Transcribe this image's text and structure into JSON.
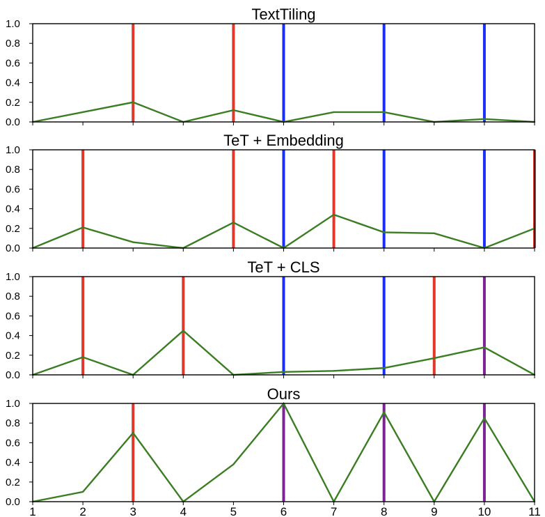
{
  "chart_data": [
    {
      "type": "line",
      "title": "TextTiling",
      "x": [
        1,
        2,
        3,
        4,
        5,
        6,
        7,
        8,
        9,
        10,
        11
      ],
      "series": [
        {
          "values": [
            0.0,
            0.1,
            0.2,
            0.0,
            0.12,
            0.0,
            0.1,
            0.1,
            0.0,
            0.03,
            0.0
          ],
          "color": "#3a7d22"
        }
      ],
      "boundaries": [
        {
          "x": 3,
          "color": "#e0382c"
        },
        {
          "x": 5,
          "color": "#e0382c"
        },
        {
          "x": 6,
          "color": "#1a2ef5"
        },
        {
          "x": 8,
          "color": "#1a2ef5"
        },
        {
          "x": 10,
          "color": "#1a2ef5"
        }
      ],
      "ylim": [
        0,
        1.0
      ],
      "xlim": [
        1,
        11
      ],
      "yticks": [
        "0.0",
        "0.2",
        "0.4",
        "0.6",
        "0.8",
        "1.0"
      ],
      "xticks": [],
      "grid": false
    },
    {
      "type": "line",
      "title": "TeT + Embedding",
      "x": [
        1,
        2,
        3,
        4,
        5,
        6,
        7,
        8,
        9,
        10,
        11
      ],
      "series": [
        {
          "values": [
            0.0,
            0.21,
            0.06,
            0.0,
            0.26,
            0.0,
            0.34,
            0.16,
            0.15,
            0.0,
            0.2
          ],
          "color": "#3a7d22"
        }
      ],
      "boundaries": [
        {
          "x": 2,
          "color": "#e0382c"
        },
        {
          "x": 5,
          "color": "#e0382c"
        },
        {
          "x": 6,
          "color": "#1a2ef5"
        },
        {
          "x": 7,
          "color": "#e0382c"
        },
        {
          "x": 8,
          "color": "#1a2ef5"
        },
        {
          "x": 10,
          "color": "#1a2ef5"
        },
        {
          "x": 11,
          "color": "#e0382c"
        }
      ],
      "ylim": [
        0,
        1.0
      ],
      "xlim": [
        1,
        11
      ],
      "yticks": [
        "0.0",
        "0.2",
        "0.4",
        "0.6",
        "0.8",
        "1.0"
      ],
      "xticks": [],
      "grid": false
    },
    {
      "type": "line",
      "title": "TeT + CLS",
      "x": [
        1,
        2,
        3,
        4,
        5,
        6,
        7,
        8,
        9,
        10,
        11
      ],
      "series": [
        {
          "values": [
            0.0,
            0.18,
            0.0,
            0.45,
            0.0,
            0.03,
            0.04,
            0.07,
            0.17,
            0.28,
            0.0
          ],
          "color": "#3a7d22"
        }
      ],
      "boundaries": [
        {
          "x": 2,
          "color": "#e0382c"
        },
        {
          "x": 4,
          "color": "#e0382c"
        },
        {
          "x": 6,
          "color": "#1a2ef5"
        },
        {
          "x": 8,
          "color": "#1a2ef5"
        },
        {
          "x": 9,
          "color": "#e0382c"
        },
        {
          "x": 10,
          "color": "#7b2592"
        }
      ],
      "ylim": [
        0,
        1.0
      ],
      "xlim": [
        1,
        11
      ],
      "yticks": [
        "0.0",
        "0.2",
        "0.4",
        "0.6",
        "0.8",
        "1.0"
      ],
      "xticks": [],
      "grid": false
    },
    {
      "type": "line",
      "title": "Ours",
      "x": [
        1,
        2,
        3,
        4,
        5,
        6,
        7,
        8,
        9,
        10,
        11
      ],
      "series": [
        {
          "values": [
            0.0,
            0.1,
            0.7,
            0.0,
            0.38,
            1.0,
            0.0,
            0.91,
            0.0,
            0.85,
            0.0
          ],
          "color": "#3a7d22"
        }
      ],
      "boundaries": [
        {
          "x": 3,
          "color": "#e0382c"
        },
        {
          "x": 6,
          "color": "#7b2592"
        },
        {
          "x": 8,
          "color": "#7b2592"
        },
        {
          "x": 10,
          "color": "#7b2592"
        }
      ],
      "ylim": [
        0,
        1.0
      ],
      "xlim": [
        1,
        11
      ],
      "yticks": [
        "0.0",
        "0.2",
        "0.4",
        "0.6",
        "0.8",
        "1.0"
      ],
      "xticks": [
        "1",
        "2",
        "3",
        "4",
        "5",
        "6",
        "7",
        "8",
        "9",
        "10",
        "11"
      ],
      "grid": false
    }
  ]
}
